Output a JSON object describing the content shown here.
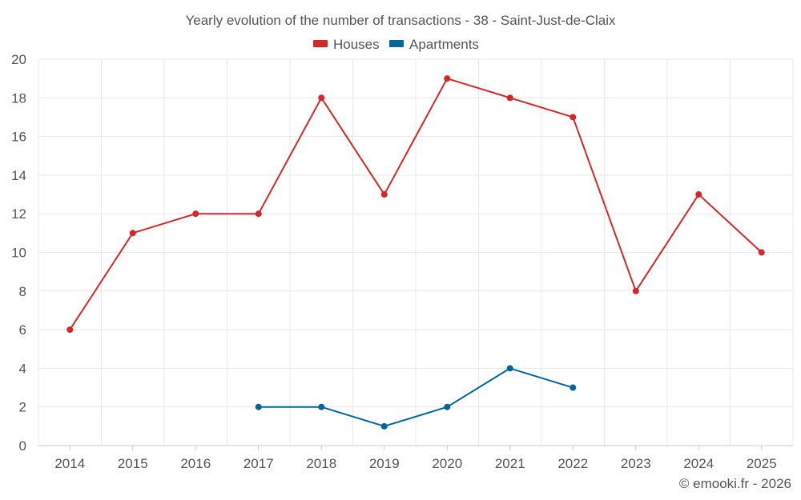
{
  "chart_data": {
    "type": "line",
    "title": "Yearly evolution of the number of transactions - 38 - Saint-Just-de-Claix",
    "categories": [
      "2014",
      "2015",
      "2016",
      "2017",
      "2018",
      "2019",
      "2020",
      "2021",
      "2022",
      "2023",
      "2024",
      "2025"
    ],
    "series": [
      {
        "name": "Houses",
        "color": "#d62728",
        "values": [
          6,
          11,
          12,
          12,
          18,
          13,
          19,
          18,
          17,
          8,
          13,
          10
        ]
      },
      {
        "name": "Apartments",
        "color": "#006699",
        "values": [
          null,
          null,
          null,
          2,
          2,
          1,
          2,
          4,
          3,
          null,
          null,
          null
        ]
      }
    ],
    "xlabel": "",
    "ylabel": "",
    "ylim": [
      0,
      20
    ],
    "yticks": [
      0,
      2,
      4,
      6,
      8,
      10,
      12,
      14,
      16,
      18,
      20
    ],
    "grid": true,
    "legend_position": "top-center"
  },
  "credit": "© emooki.fr - 2026"
}
